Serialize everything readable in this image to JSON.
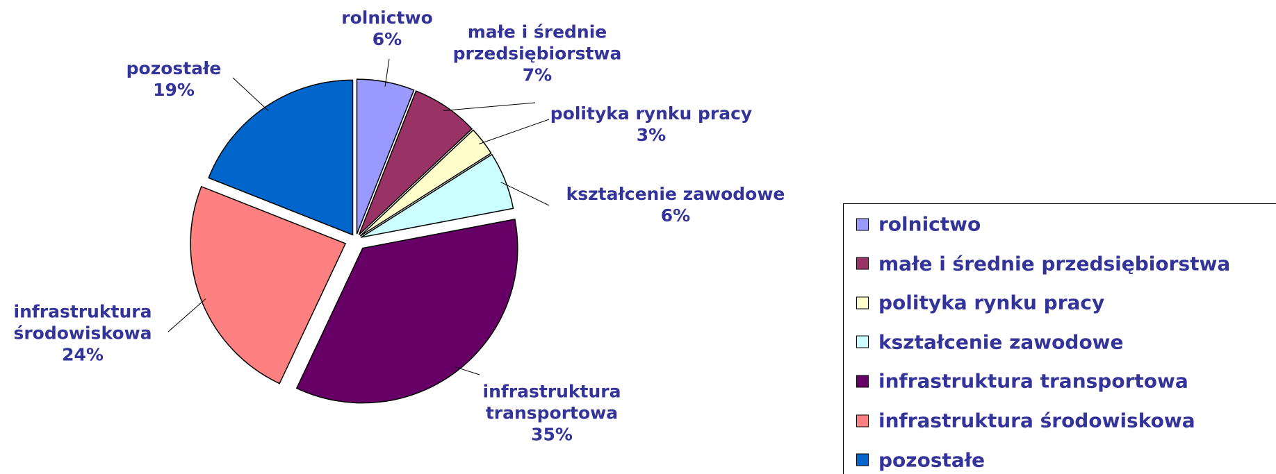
{
  "chart_data": {
    "type": "pie",
    "categories": [
      "rolnictwo",
      "małe i średnie przedsiębiorstwa",
      "polityka rynku pracy",
      "kształcenie zawodowe",
      "infrastruktura transportowa",
      "infrastruktura środowiskowa",
      "pozostałe"
    ],
    "values": [
      6,
      7,
      3,
      6,
      35,
      24,
      19
    ],
    "value_labels": [
      "6%",
      "7%",
      "3%",
      "6%",
      "35%",
      "24%",
      "19%"
    ],
    "colors": [
      "#9999ff",
      "#993366",
      "#ffffcc",
      "#ccffff",
      "#660066",
      "#ff8080",
      "#0066cc"
    ],
    "legend": "right"
  }
}
